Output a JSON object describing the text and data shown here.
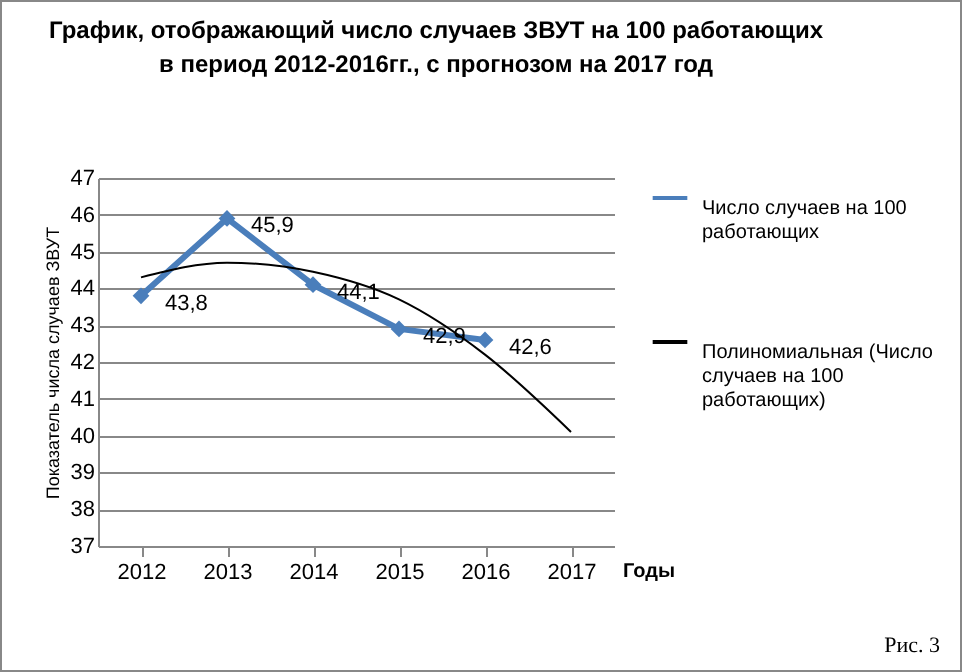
{
  "chart_data": {
    "type": "line",
    "title": "График, отображающий число случаев ЗВУТ на 100 работающих в период 2012-2016гг., с прогнозом на 2017 год",
    "xlabel": "Годы",
    "ylabel": "Показатель числа случаев ЗВУТ",
    "categories": [
      "2012",
      "2013",
      "2014",
      "2015",
      "2016",
      "2017"
    ],
    "series": [
      {
        "name": "Число случаев на 100 работающих",
        "color": "#4a7ebb",
        "marker": "diamond",
        "values": [
          43.8,
          45.9,
          44.1,
          42.9,
          42.6,
          null
        ],
        "value_labels": [
          "43,8",
          "45,9",
          "44,1",
          "42,9",
          "42,6",
          null
        ]
      },
      {
        "name": "Полиномиальная (Число случаев на 100 работающих)",
        "color": "#000000",
        "marker": "none",
        "values": [
          44.3,
          44.7,
          44.45,
          43.7,
          42.2,
          40.1
        ]
      }
    ],
    "ylim": [
      37,
      47
    ],
    "yticks": [
      37,
      38,
      39,
      40,
      41,
      42,
      43,
      44,
      45,
      46,
      47
    ],
    "grid": "y",
    "legend": "right",
    "annotations": [
      "Рис. 3"
    ]
  }
}
